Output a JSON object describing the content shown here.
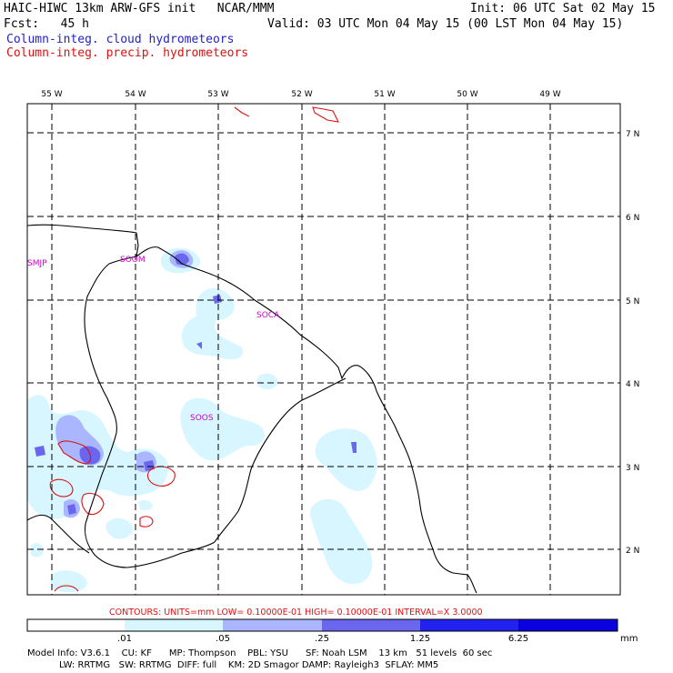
{
  "header": {
    "title": "HAIC-HIWC 13km ARW-GFS init   NCAR/MMM",
    "init": "Init: 06 UTC Sat 02 May 15",
    "fcst": "Fcst:   45 h",
    "valid": "Valid: 03 UTC Mon 04 May 15 (00 LST Mon 04 May 15)",
    "legend_cloud": "Column-integ. cloud hydrometeors",
    "legend_precip": "Column-integ. precip. hydrometeors"
  },
  "colors": {
    "cloud_legend": "#2222cc",
    "precip_legend": "#dd1111",
    "fill_1": "#d8f6ff",
    "fill_2": "#aab6ff",
    "fill_3": "#6a66ee",
    "fill_4": "#2222ee",
    "fill_5": "#0a00e0",
    "station": "#cc00cc",
    "contour": "#dd1111"
  },
  "lon_labels": [
    "55 W",
    "54 W",
    "53 W",
    "52 W",
    "51 W",
    "50 W",
    "49 W"
  ],
  "lat_labels": [
    "7 N",
    "6 N",
    "5 N",
    "4 N",
    "3 N",
    "2 N"
  ],
  "stations": [
    "SMJP",
    "SOOM",
    "SOCA",
    "SOOS"
  ],
  "contours_text": "CONTOURS:  UNITS=mm  LOW= 0.10000E-01  HIGH= 0.10000E-01  INTERVAL=X  3.0000",
  "colorbar": {
    "ticks": [
      ".01",
      ".05",
      ".25",
      "1.25",
      "6.25"
    ],
    "units": "mm"
  },
  "model_info": {
    "line1": "Model Info: V3.6.1    CU: KF      MP: Thompson    PBL: YSU      SF: Noah LSM    13 km   51 levels  60 sec",
    "line2": "           LW: RRTMG   SW: RRTMG  DIFF: full    KM: 2D Smagor DAMP: Rayleigh3  SFLAY: MM5"
  }
}
